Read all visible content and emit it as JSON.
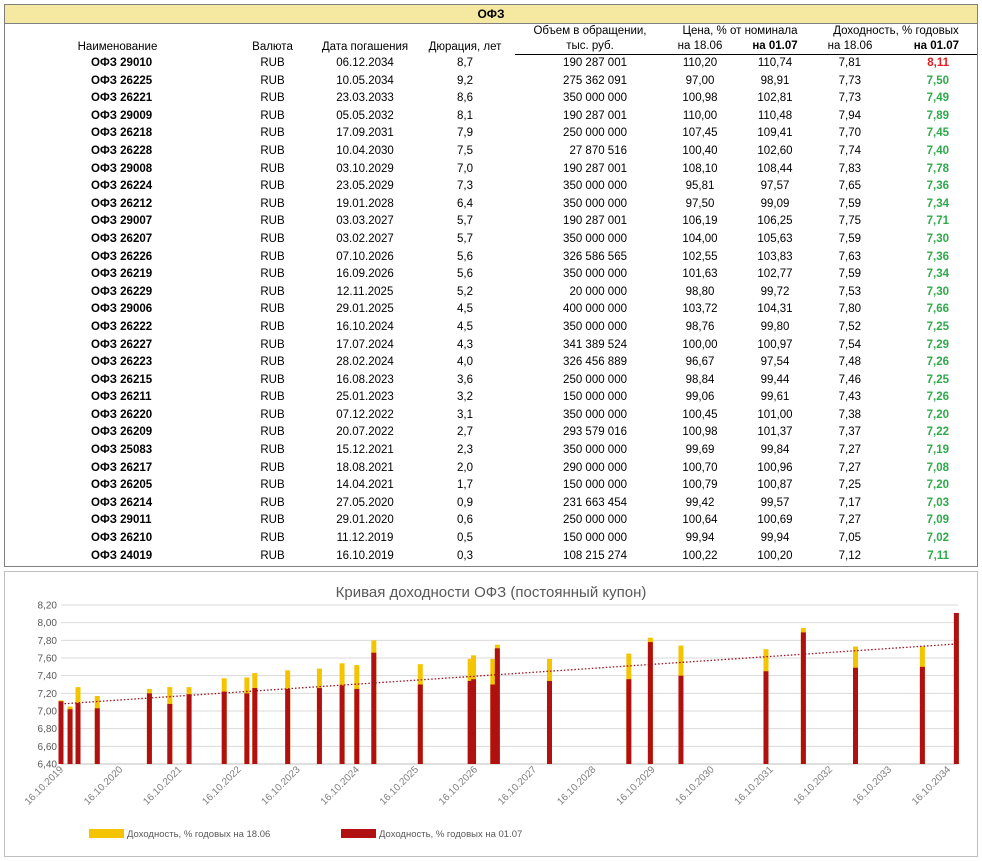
{
  "table": {
    "title": "ОФЗ",
    "headers": {
      "name": "Наименование",
      "currency": "Валюта",
      "maturity": "Дата погашения",
      "duration": "Дюрация, лет",
      "volume_l1": "Объем в обращении,",
      "volume_l2": "тыс. руб.",
      "price_l1": "Цена, % от номинала",
      "price_a": "на 18.06",
      "price_b": "на 01.07",
      "yield_l1": "Доходность, % годовых",
      "yield_a": "на 18.06",
      "yield_b": "на 01.07"
    },
    "colors": {
      "up": "#e02020",
      "down": "#2eaa4a"
    },
    "rows": [
      {
        "name": "ОФЗ 29010",
        "cur": "RUB",
        "date": "06.12.2034",
        "dur": "8,7",
        "vol": "190 287 001",
        "p1": "110,20",
        "p2": "110,74",
        "y1": "7,81",
        "y2": "8,11",
        "dir": "up"
      },
      {
        "name": "ОФЗ 26225",
        "cur": "RUB",
        "date": "10.05.2034",
        "dur": "9,2",
        "vol": "275 362 091",
        "p1": "97,00",
        "p2": "98,91",
        "y1": "7,73",
        "y2": "7,50",
        "dir": "down"
      },
      {
        "name": "ОФЗ 26221",
        "cur": "RUB",
        "date": "23.03.2033",
        "dur": "8,6",
        "vol": "350 000 000",
        "p1": "100,98",
        "p2": "102,81",
        "y1": "7,73",
        "y2": "7,49",
        "dir": "down"
      },
      {
        "name": "ОФЗ 29009",
        "cur": "RUB",
        "date": "05.05.2032",
        "dur": "8,1",
        "vol": "190 287 001",
        "p1": "110,00",
        "p2": "110,48",
        "y1": "7,94",
        "y2": "7,89",
        "dir": "down"
      },
      {
        "name": "ОФЗ 26218",
        "cur": "RUB",
        "date": "17.09.2031",
        "dur": "7,9",
        "vol": "250 000 000",
        "p1": "107,45",
        "p2": "109,41",
        "y1": "7,70",
        "y2": "7,45",
        "dir": "down"
      },
      {
        "name": "ОФЗ 26228",
        "cur": "RUB",
        "date": "10.04.2030",
        "dur": "7,5",
        "vol": "27 870 516",
        "p1": "100,40",
        "p2": "102,60",
        "y1": "7,74",
        "y2": "7,40",
        "dir": "down"
      },
      {
        "name": "ОФЗ 29008",
        "cur": "RUB",
        "date": "03.10.2029",
        "dur": "7,0",
        "vol": "190 287 001",
        "p1": "108,10",
        "p2": "108,44",
        "y1": "7,83",
        "y2": "7,78",
        "dir": "down"
      },
      {
        "name": "ОФЗ 26224",
        "cur": "RUB",
        "date": "23.05.2029",
        "dur": "7,3",
        "vol": "350 000 000",
        "p1": "95,81",
        "p2": "97,57",
        "y1": "7,65",
        "y2": "7,36",
        "dir": "down"
      },
      {
        "name": "ОФЗ 26212",
        "cur": "RUB",
        "date": "19.01.2028",
        "dur": "6,4",
        "vol": "350 000 000",
        "p1": "97,50",
        "p2": "99,09",
        "y1": "7,59",
        "y2": "7,34",
        "dir": "down"
      },
      {
        "name": "ОФЗ 29007",
        "cur": "RUB",
        "date": "03.03.2027",
        "dur": "5,7",
        "vol": "190 287 001",
        "p1": "106,19",
        "p2": "106,25",
        "y1": "7,75",
        "y2": "7,71",
        "dir": "down"
      },
      {
        "name": "ОФЗ 26207",
        "cur": "RUB",
        "date": "03.02.2027",
        "dur": "5,7",
        "vol": "350 000 000",
        "p1": "104,00",
        "p2": "105,63",
        "y1": "7,59",
        "y2": "7,30",
        "dir": "down"
      },
      {
        "name": "ОФЗ 26226",
        "cur": "RUB",
        "date": "07.10.2026",
        "dur": "5,6",
        "vol": "326 586 565",
        "p1": "102,55",
        "p2": "103,83",
        "y1": "7,63",
        "y2": "7,36",
        "dir": "down"
      },
      {
        "name": "ОФЗ 26219",
        "cur": "RUB",
        "date": "16.09.2026",
        "dur": "5,6",
        "vol": "350 000 000",
        "p1": "101,63",
        "p2": "102,77",
        "y1": "7,59",
        "y2": "7,34",
        "dir": "down"
      },
      {
        "name": "ОФЗ 26229",
        "cur": "RUB",
        "date": "12.11.2025",
        "dur": "5,2",
        "vol": "20 000 000",
        "p1": "98,80",
        "p2": "99,72",
        "y1": "7,53",
        "y2": "7,30",
        "dir": "down"
      },
      {
        "name": "ОФЗ 29006",
        "cur": "RUB",
        "date": "29.01.2025",
        "dur": "4,5",
        "vol": "400 000 000",
        "p1": "103,72",
        "p2": "104,31",
        "y1": "7,80",
        "y2": "7,66",
        "dir": "down"
      },
      {
        "name": "ОФЗ 26222",
        "cur": "RUB",
        "date": "16.10.2024",
        "dur": "4,5",
        "vol": "350 000 000",
        "p1": "98,76",
        "p2": "99,80",
        "y1": "7,52",
        "y2": "7,25",
        "dir": "down"
      },
      {
        "name": "ОФЗ 26227",
        "cur": "RUB",
        "date": "17.07.2024",
        "dur": "4,3",
        "vol": "341 389 524",
        "p1": "100,00",
        "p2": "100,97",
        "y1": "7,54",
        "y2": "7,29",
        "dir": "down"
      },
      {
        "name": "ОФЗ 26223",
        "cur": "RUB",
        "date": "28.02.2024",
        "dur": "4,0",
        "vol": "326 456 889",
        "p1": "96,67",
        "p2": "97,54",
        "y1": "7,48",
        "y2": "7,26",
        "dir": "down"
      },
      {
        "name": "ОФЗ 26215",
        "cur": "RUB",
        "date": "16.08.2023",
        "dur": "3,6",
        "vol": "250 000 000",
        "p1": "98,84",
        "p2": "99,44",
        "y1": "7,46",
        "y2": "7,25",
        "dir": "down"
      },
      {
        "name": "ОФЗ 26211",
        "cur": "RUB",
        "date": "25.01.2023",
        "dur": "3,2",
        "vol": "150 000 000",
        "p1": "99,06",
        "p2": "99,61",
        "y1": "7,43",
        "y2": "7,26",
        "dir": "down"
      },
      {
        "name": "ОФЗ 26220",
        "cur": "RUB",
        "date": "07.12.2022",
        "dur": "3,1",
        "vol": "350 000 000",
        "p1": "100,45",
        "p2": "101,00",
        "y1": "7,38",
        "y2": "7,20",
        "dir": "down"
      },
      {
        "name": "ОФЗ 26209",
        "cur": "RUB",
        "date": "20.07.2022",
        "dur": "2,7",
        "vol": "293 579 016",
        "p1": "100,98",
        "p2": "101,37",
        "y1": "7,37",
        "y2": "7,22",
        "dir": "down"
      },
      {
        "name": "ОФЗ 25083",
        "cur": "RUB",
        "date": "15.12.2021",
        "dur": "2,3",
        "vol": "350 000 000",
        "p1": "99,69",
        "p2": "99,84",
        "y1": "7,27",
        "y2": "7,19",
        "dir": "down"
      },
      {
        "name": "ОФЗ 26217",
        "cur": "RUB",
        "date": "18.08.2021",
        "dur": "2,0",
        "vol": "290 000 000",
        "p1": "100,70",
        "p2": "100,96",
        "y1": "7,27",
        "y2": "7,08",
        "dir": "down"
      },
      {
        "name": "ОФЗ 26205",
        "cur": "RUB",
        "date": "14.04.2021",
        "dur": "1,7",
        "vol": "150 000 000",
        "p1": "100,79",
        "p2": "100,87",
        "y1": "7,25",
        "y2": "7,20",
        "dir": "down"
      },
      {
        "name": "ОФЗ 26214",
        "cur": "RUB",
        "date": "27.05.2020",
        "dur": "0,9",
        "vol": "231 663 454",
        "p1": "99,42",
        "p2": "99,57",
        "y1": "7,17",
        "y2": "7,03",
        "dir": "down"
      },
      {
        "name": "ОФЗ 29011",
        "cur": "RUB",
        "date": "29.01.2020",
        "dur": "0,6",
        "vol": "250 000 000",
        "p1": "100,64",
        "p2": "100,69",
        "y1": "7,27",
        "y2": "7,09",
        "dir": "down"
      },
      {
        "name": "ОФЗ 26210",
        "cur": "RUB",
        "date": "11.12.2019",
        "dur": "0,5",
        "vol": "150 000 000",
        "p1": "99,94",
        "p2": "99,94",
        "y1": "7,05",
        "y2": "7,02",
        "dir": "down"
      },
      {
        "name": "ОФЗ 24019",
        "cur": "RUB",
        "date": "16.10.2019",
        "dur": "0,3",
        "vol": "108 215 274",
        "p1": "100,22",
        "p2": "100,20",
        "y1": "7,12",
        "y2": "7,11",
        "dir": "down"
      }
    ]
  },
  "chart_data": {
    "type": "bar",
    "title": "Кривая доходности ОФЗ (постоянный купон)",
    "ylim": [
      6.4,
      8.2
    ],
    "yticks": [
      "6,40",
      "6,60",
      "6,80",
      "7,00",
      "7,20",
      "7,40",
      "7,60",
      "7,80",
      "8,00",
      "8,20"
    ],
    "xlim": [
      "2019-10-16",
      "2034-12-16"
    ],
    "xticks": [
      "16.10.2019",
      "16.10.2020",
      "16.10.2021",
      "16.10.2022",
      "16.10.2023",
      "16.10.2024",
      "16.10.2025",
      "16.10.2026",
      "16.10.2027",
      "16.10.2028",
      "16.10.2029",
      "16.10.2030",
      "16.10.2031",
      "16.10.2032",
      "16.10.2033",
      "16.10.2034"
    ],
    "grid": true,
    "legend_position": "bottom",
    "trendline": {
      "style": "dotted",
      "color": "#a01020",
      "y_start": 7.08,
      "y_end": 7.76
    },
    "series": [
      {
        "name": "Доходность, % годовых на 18.06",
        "color": "#f5c400",
        "x": [
          "2034-12-06",
          "2034-05-10",
          "2033-03-23",
          "2032-05-05",
          "2031-09-17",
          "2030-04-10",
          "2029-10-03",
          "2029-05-23",
          "2028-01-19",
          "2027-03-03",
          "2027-02-03",
          "2026-10-07",
          "2026-09-16",
          "2025-11-12",
          "2025-01-29",
          "2024-10-16",
          "2024-07-17",
          "2024-02-28",
          "2023-08-16",
          "2023-01-25",
          "2022-12-07",
          "2022-07-20",
          "2021-12-15",
          "2021-08-18",
          "2021-04-14",
          "2020-05-27",
          "2020-01-29",
          "2019-12-11",
          "2019-10-16"
        ],
        "values": [
          7.81,
          7.73,
          7.73,
          7.94,
          7.7,
          7.74,
          7.83,
          7.65,
          7.59,
          7.75,
          7.59,
          7.63,
          7.59,
          7.53,
          7.8,
          7.52,
          7.54,
          7.48,
          7.46,
          7.43,
          7.38,
          7.37,
          7.27,
          7.27,
          7.25,
          7.17,
          7.27,
          7.05,
          7.12
        ]
      },
      {
        "name": "Доходность, % годовых на 01.07",
        "color": "#b01010",
        "x": [
          "2034-12-06",
          "2034-05-10",
          "2033-03-23",
          "2032-05-05",
          "2031-09-17",
          "2030-04-10",
          "2029-10-03",
          "2029-05-23",
          "2028-01-19",
          "2027-03-03",
          "2027-02-03",
          "2026-10-07",
          "2026-09-16",
          "2025-11-12",
          "2025-01-29",
          "2024-10-16",
          "2024-07-17",
          "2024-02-28",
          "2023-08-16",
          "2023-01-25",
          "2022-12-07",
          "2022-07-20",
          "2021-12-15",
          "2021-08-18",
          "2021-04-14",
          "2020-05-27",
          "2020-01-29",
          "2019-12-11",
          "2019-10-16"
        ],
        "values": [
          8.11,
          7.5,
          7.49,
          7.89,
          7.45,
          7.4,
          7.78,
          7.36,
          7.34,
          7.71,
          7.3,
          7.36,
          7.34,
          7.3,
          7.66,
          7.25,
          7.29,
          7.26,
          7.25,
          7.26,
          7.2,
          7.22,
          7.19,
          7.08,
          7.2,
          7.03,
          7.09,
          7.02,
          7.11
        ]
      }
    ]
  }
}
